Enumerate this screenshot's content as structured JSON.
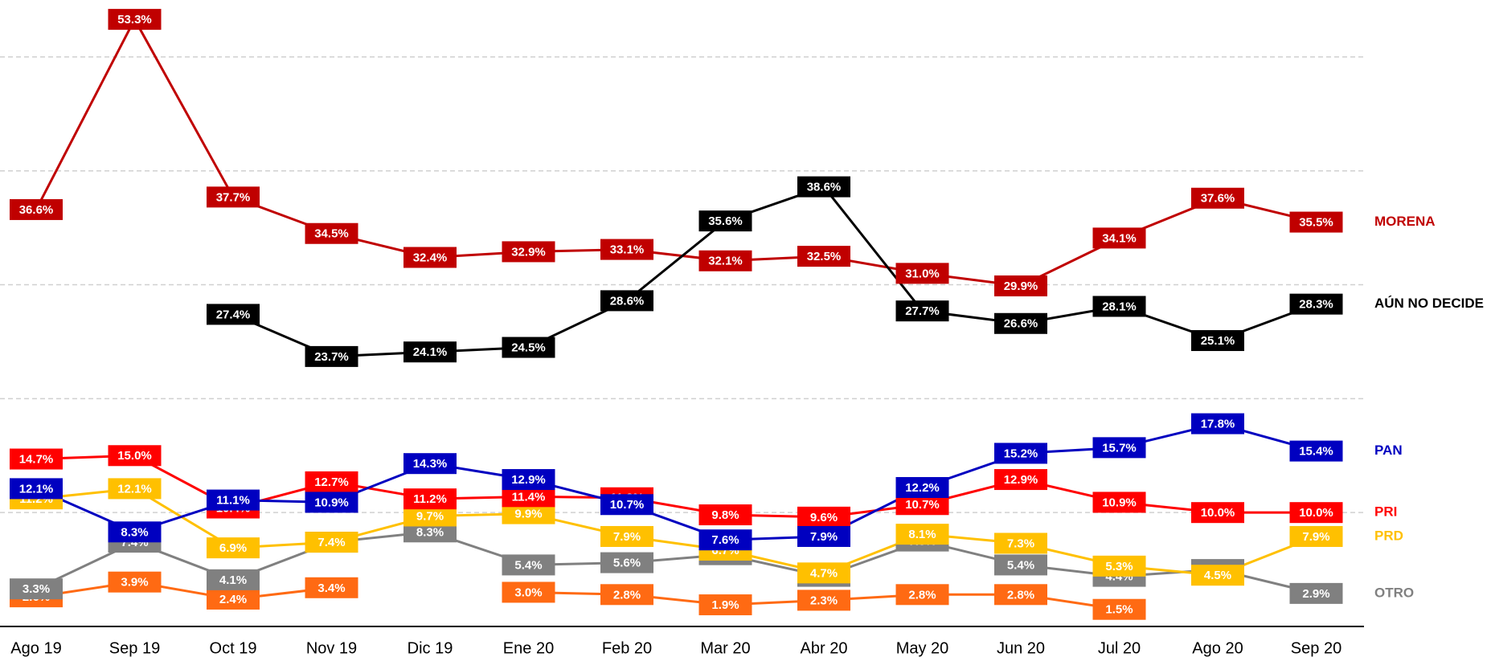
{
  "chart_data": {
    "type": "line",
    "categories": [
      "Ago 19",
      "Sep 19",
      "Oct 19",
      "Nov 19",
      "Dic 19",
      "Ene 20",
      "Feb 20",
      "Mar 20",
      "Abr 20",
      "May 20",
      "Jun 20",
      "Jul 20",
      "Ago 20",
      "Sep 20"
    ],
    "ylim": [
      0,
      55
    ],
    "yticks": [
      10,
      20,
      30,
      40,
      50
    ],
    "grid": true,
    "series": [
      {
        "name": "MORENA",
        "color": "#c00000",
        "values": [
          36.6,
          53.3,
          37.7,
          34.5,
          32.4,
          32.9,
          33.1,
          32.1,
          32.5,
          31.0,
          29.9,
          34.1,
          37.6,
          35.5
        ],
        "value_labels": [
          "36.6%",
          "53.3%",
          "37.7%",
          "34.5%",
          "32.4%",
          "32.9%",
          "33.1%",
          "32.1%",
          "32.5%",
          "31.0%",
          "29.9%",
          "34.1%",
          "37.6%",
          "35.5%"
        ]
      },
      {
        "name": "AÚN NO DECIDE",
        "color": "#000000",
        "values": [
          null,
          null,
          27.4,
          23.7,
          24.1,
          24.5,
          28.6,
          35.6,
          38.6,
          27.7,
          26.6,
          28.1,
          25.1,
          28.3
        ],
        "value_labels": [
          null,
          null,
          "27.4%",
          "23.7%",
          "24.1%",
          "24.5%",
          "28.6%",
          "35.6%",
          "38.6%",
          "27.7%",
          "26.6%",
          "28.1%",
          "25.1%",
          "28.3%"
        ]
      },
      {
        "color": "#ff6a13",
        "values": [
          2.6,
          3.9,
          2.4,
          3.4,
          null,
          3.0,
          2.8,
          1.9,
          2.3,
          2.8,
          2.8,
          1.5,
          null,
          null
        ],
        "value_labels": [
          "2.6%",
          "3.9%",
          "2.4%",
          "3.4%",
          null,
          "3.0%",
          "2.8%",
          "1.9%",
          "2.3%",
          "2.8%",
          "2.8%",
          "1.5%",
          null,
          null
        ]
      },
      {
        "name": "OTRO",
        "color": "#808080",
        "values": [
          3.3,
          7.4,
          4.1,
          7.4,
          8.3,
          5.4,
          5.6,
          6.3,
          4.4,
          7.5,
          5.4,
          4.4,
          5.0,
          2.9
        ],
        "value_labels": [
          "3.3%",
          "7.4%",
          "4.1%",
          "7.4%",
          "8.3%",
          "5.4%",
          "5.6%",
          "6.3%",
          "4.4%",
          "7.5%",
          "5.4%",
          "4.4%",
          "5.0%",
          "2.9%"
        ]
      },
      {
        "name": "PRD",
        "color": "#ffc000",
        "values": [
          11.2,
          12.1,
          6.9,
          7.4,
          9.7,
          9.9,
          7.9,
          6.7,
          4.7,
          8.1,
          7.3,
          5.3,
          4.5,
          7.9
        ],
        "value_labels": [
          "11.2%",
          "12.1%",
          "6.9%",
          "7.4%",
          "9.7%",
          "9.9%",
          "7.9%",
          "6.7%",
          "4.7%",
          "8.1%",
          "7.3%",
          "5.3%",
          "4.5%",
          "7.9%"
        ]
      },
      {
        "name": "PRI",
        "color": "#ff0000",
        "values": [
          14.7,
          15.0,
          10.4,
          12.7,
          11.2,
          11.4,
          11.3,
          9.8,
          9.6,
          10.7,
          12.9,
          10.9,
          10.0,
          10.0
        ],
        "value_labels": [
          "14.7%",
          "15.0%",
          "10.4%",
          "12.7%",
          "11.2%",
          "11.4%",
          "11.3%",
          "9.8%",
          "9.6%",
          "10.7%",
          "12.9%",
          "10.9%",
          "10.0%",
          "10.0%"
        ]
      },
      {
        "name": "PAN",
        "color": "#0000c0",
        "values": [
          12.1,
          8.3,
          11.1,
          10.9,
          14.3,
          12.9,
          10.7,
          7.6,
          7.9,
          12.2,
          15.2,
          15.7,
          17.8,
          15.4
        ],
        "value_labels": [
          "12.1%",
          "8.3%",
          "11.1%",
          "10.9%",
          "14.3%",
          "12.9%",
          "10.7%",
          "7.6%",
          "7.9%",
          "12.2%",
          "15.2%",
          "15.7%",
          "17.8%",
          "15.4%"
        ]
      }
    ]
  }
}
